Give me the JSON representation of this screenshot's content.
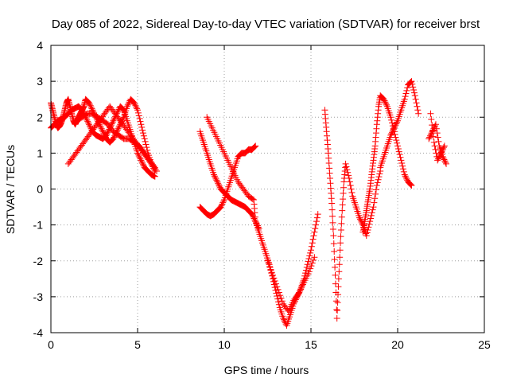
{
  "chart_data": {
    "type": "scatter",
    "title": "Day 085 of 2022, Sidereal Day-to-day VTEC variation (SDTVAR) for receiver brst",
    "xlabel": "GPS time / hours",
    "ylabel": "SDTVAR / TECUs",
    "xlim": [
      0,
      25
    ],
    "ylim": [
      -4,
      4
    ],
    "xticks": [
      "0",
      "5",
      "10",
      "15",
      "20",
      "25"
    ],
    "yticks": [
      "-4",
      "-3",
      "-2",
      "-1",
      "0",
      "1",
      "2",
      "3",
      "4"
    ],
    "grid": true,
    "marker": "+",
    "color": "#ff0000",
    "series": [
      {
        "name": "",
        "x": [
          0.0,
          0.1,
          0.2,
          0.3,
          0.4,
          0.5,
          0.6,
          0.7,
          0.8,
          0.9,
          1.0,
          1.1,
          1.2,
          1.3,
          1.4,
          1.5,
          1.6,
          1.7,
          1.8,
          1.9,
          2.0,
          2.2,
          2.4,
          2.6,
          2.8,
          3.0,
          3.2,
          3.4,
          3.6,
          3.8,
          4.0,
          4.2,
          4.4,
          4.6,
          4.8,
          5.0,
          5.2,
          5.4,
          5.6,
          5.8,
          6.0,
          0.0,
          0.2,
          0.4,
          0.6,
          0.8,
          1.0,
          1.2,
          1.4,
          1.6,
          1.8,
          2.0,
          2.2,
          2.4,
          2.6,
          2.8,
          3.0,
          3.2,
          3.4,
          3.6,
          3.8,
          4.0,
          4.2,
          4.4,
          4.6,
          4.8,
          5.0,
          5.2,
          5.4,
          5.6,
          5.8,
          6.0,
          1.0,
          1.3,
          1.6,
          1.9,
          2.2,
          2.5,
          2.8,
          3.1,
          3.4,
          3.7,
          4.0,
          4.3,
          4.6,
          4.9,
          5.2,
          5.5,
          5.8,
          6.1,
          1.5,
          1.8,
          2.1,
          2.4,
          2.7,
          3.0,
          3.3,
          3.6,
          3.9,
          4.2,
          4.5,
          4.8,
          5.1,
          5.4,
          5.7,
          6.0,
          8.6,
          8.8,
          9.0,
          9.2,
          9.4,
          9.6,
          9.8,
          10.0,
          10.2,
          10.4,
          10.6,
          10.8,
          11.0,
          11.2,
          11.4,
          11.6,
          11.8,
          12.0,
          8.6,
          8.8,
          9.0,
          9.2,
          9.4,
          9.6,
          9.8,
          10.0,
          10.2,
          10.4,
          10.6,
          10.8,
          11.0,
          11.2,
          11.4,
          11.6,
          11.8,
          9.0,
          9.3,
          9.6,
          9.9,
          10.2,
          10.5,
          10.8,
          11.1,
          11.4,
          11.7,
          11.8,
          12.0,
          12.2,
          12.4,
          12.6,
          12.8,
          13.0,
          13.2,
          13.4,
          13.6,
          13.8,
          14.0,
          14.2,
          14.4,
          14.6,
          14.8,
          15.0,
          15.2,
          15.4,
          12.5,
          12.8,
          13.1,
          13.4,
          13.7,
          14.0,
          14.3,
          14.6,
          14.9,
          15.2,
          15.8,
          15.9,
          16.0,
          16.1,
          16.2,
          16.3,
          16.4,
          16.5,
          16.6,
          16.7,
          16.8,
          16.9,
          17.0,
          17.2,
          17.4,
          17.6,
          17.8,
          18.0,
          18.2,
          18.4,
          18.6,
          18.8,
          19.0,
          18.0,
          18.1,
          18.2,
          18.3,
          18.4,
          18.5,
          18.6,
          18.7,
          18.8,
          18.9,
          19.0,
          19.2,
          19.4,
          19.6,
          19.8,
          20.0,
          20.2,
          20.4,
          20.6,
          20.8,
          19.0,
          19.2,
          19.4,
          19.6,
          19.8,
          20.0,
          20.2,
          20.4,
          20.6,
          20.8,
          21.0,
          21.2,
          21.8,
          22.0,
          22.2,
          22.4,
          22.6,
          22.8,
          21.9,
          22.1,
          22.3,
          22.5,
          22.7
        ],
        "y": [
          2.4,
          2.2,
          2.0,
          1.8,
          1.7,
          1.75,
          1.85,
          2.0,
          2.2,
          2.4,
          2.5,
          2.3,
          2.1,
          1.9,
          1.8,
          1.9,
          2.0,
          2.1,
          2.2,
          2.3,
          2.5,
          2.4,
          2.2,
          2.0,
          1.8,
          1.6,
          1.4,
          1.3,
          1.4,
          1.6,
          1.8,
          2.0,
          2.3,
          2.5,
          2.4,
          2.2,
          1.8,
          1.4,
          1.0,
          0.7,
          0.5,
          1.7,
          1.8,
          1.9,
          1.95,
          2.0,
          2.1,
          2.2,
          2.25,
          2.3,
          2.2,
          2.0,
          1.8,
          1.6,
          1.5,
          1.45,
          1.4,
          1.5,
          1.7,
          1.9,
          2.1,
          2.3,
          2.2,
          1.9,
          1.6,
          1.3,
          1.0,
          0.8,
          0.6,
          0.5,
          0.4,
          0.35,
          0.7,
          0.9,
          1.1,
          1.3,
          1.5,
          1.7,
          1.9,
          2.1,
          2.3,
          2.1,
          1.9,
          1.7,
          1.5,
          1.3,
          1.1,
          0.9,
          0.7,
          0.5,
          1.9,
          2.0,
          2.1,
          2.1,
          2.0,
          1.9,
          1.8,
          1.6,
          1.5,
          1.4,
          1.4,
          1.3,
          1.2,
          1.0,
          0.8,
          0.6,
          1.6,
          1.3,
          1.0,
          0.7,
          0.4,
          0.2,
          0.0,
          -0.1,
          -0.2,
          -0.3,
          -0.35,
          -0.4,
          -0.45,
          -0.5,
          -0.6,
          -0.7,
          -0.9,
          -1.1,
          -0.5,
          -0.6,
          -0.7,
          -0.75,
          -0.7,
          -0.6,
          -0.5,
          -0.3,
          0.0,
          0.3,
          0.6,
          0.9,
          1.0,
          1.0,
          1.1,
          1.1,
          1.2,
          2.0,
          1.7,
          1.4,
          1.1,
          0.8,
          0.5,
          0.2,
          0.0,
          -0.2,
          -0.3,
          -0.9,
          -1.2,
          -1.5,
          -1.8,
          -2.1,
          -2.5,
          -2.9,
          -3.3,
          -3.6,
          -3.8,
          -3.5,
          -3.2,
          -3.0,
          -2.8,
          -2.5,
          -2.1,
          -1.7,
          -1.2,
          -0.7,
          -2.0,
          -2.4,
          -2.8,
          -3.2,
          -3.4,
          -3.1,
          -2.9,
          -2.6,
          -2.3,
          -1.9,
          2.2,
          1.6,
          1.0,
          0.3,
          -0.4,
          -1.3,
          -2.4,
          -3.6,
          -2.5,
          -1.5,
          -0.6,
          0.2,
          0.7,
          0.3,
          -0.2,
          -0.5,
          -0.8,
          -1.0,
          -1.3,
          -0.9,
          -0.5,
          0.1,
          0.5,
          -1.2,
          -0.9,
          -0.6,
          -0.3,
          0.0,
          0.4,
          0.8,
          1.2,
          1.8,
          2.3,
          2.6,
          2.5,
          2.3,
          2.0,
          1.6,
          1.2,
          0.8,
          0.4,
          0.2,
          0.1,
          0.6,
          0.9,
          1.2,
          1.5,
          1.7,
          1.9,
          2.2,
          2.5,
          2.9,
          3.0,
          2.6,
          2.1,
          1.4,
          1.6,
          1.8,
          1.2,
          0.9,
          0.7,
          2.1,
          1.3,
          0.8,
          1.0,
          1.2
        ]
      }
    ]
  }
}
